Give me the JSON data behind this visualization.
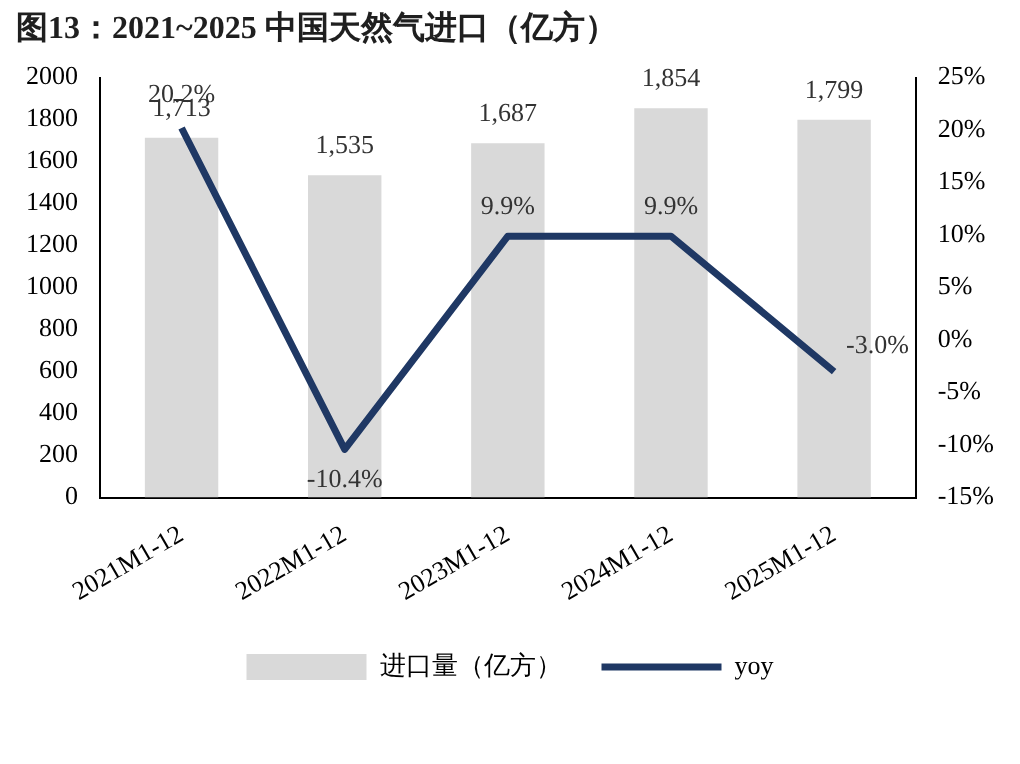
{
  "chart_data": {
    "type": "bar",
    "title": "图13：2021~2025 中国天然气进口（亿方）",
    "categories": [
      "2021M1-12",
      "2022M1-12",
      "2023M1-12",
      "2024M1-12",
      "2025M1-12"
    ],
    "series": [
      {
        "name": "进口量（亿方）",
        "color": "#d9d9d9",
        "values": [
          1713,
          1535,
          1687,
          1854,
          1799
        ],
        "value_labels": [
          "1,713",
          "1,535",
          "1,687",
          "1,854",
          "1,799"
        ]
      },
      {
        "name": "yoy",
        "type": "line",
        "axis": "y2",
        "color": "#1f3864",
        "values": [
          20.2,
          -10.4,
          9.9,
          9.9,
          -3.0
        ],
        "value_labels": [
          "20.2%",
          "-10.4%",
          "9.9%",
          "9.9%",
          "-3.0%"
        ]
      }
    ],
    "ylim": [
      0,
      2000
    ],
    "yticks": [
      0,
      200,
      400,
      600,
      800,
      1000,
      1200,
      1400,
      1600,
      1800,
      2000
    ],
    "y2lim": [
      -15,
      25
    ],
    "y2ticks": [
      {
        "value": -15,
        "label": "-15%"
      },
      {
        "value": -10,
        "label": "-10%"
      },
      {
        "value": -5,
        "label": "-5%"
      },
      {
        "value": 0,
        "label": "0%"
      },
      {
        "value": 5,
        "label": "5%"
      },
      {
        "value": 10,
        "label": "10%"
      },
      {
        "value": 15,
        "label": "15%"
      },
      {
        "value": 20,
        "label": "20%"
      },
      {
        "value": 25,
        "label": "25%"
      }
    ],
    "grid": false,
    "legend": "bottom",
    "marker": "none",
    "line_style": "solid"
  }
}
